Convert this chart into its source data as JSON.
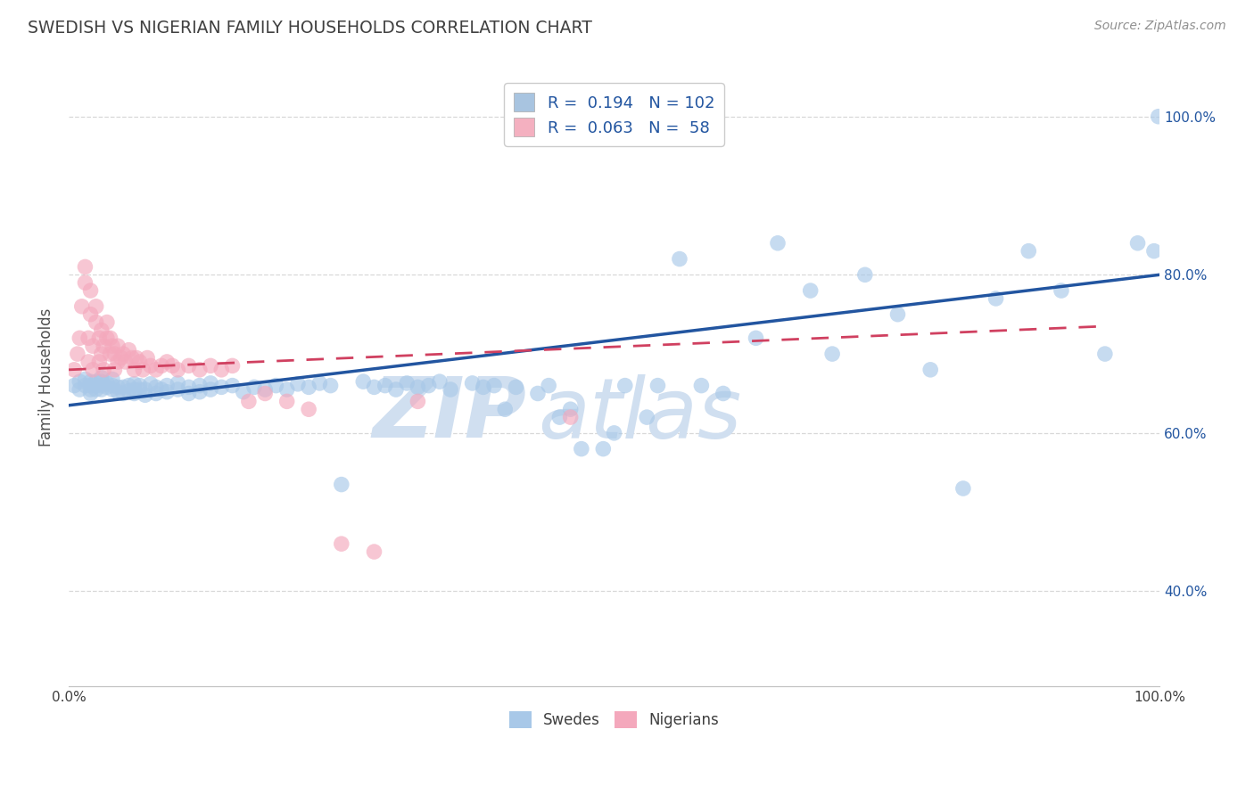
{
  "title": "SWEDISH VS NIGERIAN FAMILY HOUSEHOLDS CORRELATION CHART",
  "source": "Source: ZipAtlas.com",
  "ylabel": "Family Households",
  "xlim": [
    0,
    1
  ],
  "ylim": [
    0.28,
    1.06
  ],
  "yticks": [
    0.4,
    0.6,
    0.8,
    1.0
  ],
  "ytick_labels": [
    "40.0%",
    "60.0%",
    "80.0%",
    "100.0%"
  ],
  "legend_label1": "R =  0.194   N = 102",
  "legend_label2": "R =  0.063   N =  58",
  "legend_color1": "#a8c4e0",
  "legend_color2": "#f4b0c0",
  "scatter_color_blue": "#a8c8e8",
  "scatter_color_pink": "#f4a8bc",
  "trendline_color_blue": "#2255a0",
  "trendline_color_pink": "#d04060",
  "watermark_text": "ZIPatlas",
  "watermark_color": "#d0dff0",
  "background_color": "#ffffff",
  "title_color": "#404040",
  "source_color": "#909090",
  "grid_color": "#d8d8d8",
  "legend_number_color": "#2255a0",
  "ytick_color": "#2255a0",
  "swedes_x": [
    0.005,
    0.01,
    0.01,
    0.015,
    0.015,
    0.02,
    0.02,
    0.02,
    0.02,
    0.025,
    0.025,
    0.025,
    0.03,
    0.03,
    0.03,
    0.03,
    0.035,
    0.035,
    0.04,
    0.04,
    0.04,
    0.045,
    0.045,
    0.05,
    0.05,
    0.055,
    0.055,
    0.06,
    0.06,
    0.06,
    0.065,
    0.065,
    0.07,
    0.07,
    0.075,
    0.08,
    0.08,
    0.085,
    0.09,
    0.09,
    0.1,
    0.1,
    0.11,
    0.11,
    0.12,
    0.12,
    0.13,
    0.13,
    0.14,
    0.15,
    0.16,
    0.17,
    0.18,
    0.19,
    0.2,
    0.21,
    0.22,
    0.23,
    0.24,
    0.25,
    0.27,
    0.28,
    0.29,
    0.3,
    0.31,
    0.32,
    0.33,
    0.34,
    0.35,
    0.37,
    0.38,
    0.39,
    0.4,
    0.41,
    0.43,
    0.44,
    0.45,
    0.46,
    0.47,
    0.49,
    0.5,
    0.51,
    0.53,
    0.54,
    0.56,
    0.58,
    0.6,
    0.63,
    0.65,
    0.68,
    0.7,
    0.73,
    0.76,
    0.79,
    0.82,
    0.85,
    0.88,
    0.91,
    0.95,
    0.98,
    0.995,
    0.999
  ],
  "swedes_y": [
    0.66,
    0.655,
    0.665,
    0.66,
    0.668,
    0.65,
    0.655,
    0.66,
    0.665,
    0.655,
    0.66,
    0.665,
    0.655,
    0.66,
    0.665,
    0.67,
    0.658,
    0.663,
    0.655,
    0.66,
    0.668,
    0.652,
    0.658,
    0.65,
    0.658,
    0.653,
    0.66,
    0.65,
    0.655,
    0.662,
    0.655,
    0.66,
    0.648,
    0.655,
    0.662,
    0.65,
    0.658,
    0.655,
    0.652,
    0.66,
    0.655,
    0.663,
    0.65,
    0.658,
    0.652,
    0.66,
    0.655,
    0.663,
    0.658,
    0.66,
    0.652,
    0.658,
    0.655,
    0.66,
    0.655,
    0.662,
    0.658,
    0.663,
    0.66,
    0.535,
    0.665,
    0.658,
    0.66,
    0.655,
    0.663,
    0.658,
    0.66,
    0.665,
    0.655,
    0.663,
    0.658,
    0.66,
    0.63,
    0.658,
    0.65,
    0.66,
    0.62,
    0.63,
    0.58,
    0.58,
    0.6,
    0.66,
    0.62,
    0.66,
    0.82,
    0.66,
    0.65,
    0.72,
    0.84,
    0.78,
    0.7,
    0.8,
    0.75,
    0.68,
    0.53,
    0.77,
    0.83,
    0.78,
    0.7,
    0.84,
    0.83,
    1.0
  ],
  "nigerians_x": [
    0.005,
    0.008,
    0.01,
    0.012,
    0.015,
    0.015,
    0.018,
    0.018,
    0.02,
    0.02,
    0.022,
    0.022,
    0.025,
    0.025,
    0.028,
    0.028,
    0.03,
    0.03,
    0.032,
    0.032,
    0.035,
    0.035,
    0.038,
    0.038,
    0.04,
    0.042,
    0.042,
    0.045,
    0.045,
    0.048,
    0.05,
    0.052,
    0.055,
    0.058,
    0.06,
    0.062,
    0.065,
    0.068,
    0.072,
    0.075,
    0.08,
    0.085,
    0.09,
    0.095,
    0.1,
    0.11,
    0.12,
    0.13,
    0.14,
    0.15,
    0.165,
    0.18,
    0.2,
    0.22,
    0.25,
    0.28,
    0.32,
    0.46
  ],
  "nigerians_y": [
    0.68,
    0.7,
    0.72,
    0.76,
    0.79,
    0.81,
    0.69,
    0.72,
    0.75,
    0.78,
    0.68,
    0.71,
    0.74,
    0.76,
    0.69,
    0.72,
    0.7,
    0.73,
    0.68,
    0.71,
    0.72,
    0.74,
    0.7,
    0.72,
    0.71,
    0.68,
    0.7,
    0.69,
    0.71,
    0.695,
    0.7,
    0.69,
    0.705,
    0.695,
    0.68,
    0.695,
    0.69,
    0.68,
    0.695,
    0.685,
    0.68,
    0.685,
    0.69,
    0.685,
    0.68,
    0.685,
    0.68,
    0.685,
    0.68,
    0.685,
    0.64,
    0.65,
    0.64,
    0.63,
    0.46,
    0.45,
    0.64,
    0.62
  ],
  "blue_trend_x0": 0.0,
  "blue_trend_y0": 0.635,
  "blue_trend_x1": 1.0,
  "blue_trend_y1": 0.8,
  "pink_trend_x0": 0.0,
  "pink_trend_y0": 0.68,
  "pink_trend_x1": 0.95,
  "pink_trend_y1": 0.735
}
